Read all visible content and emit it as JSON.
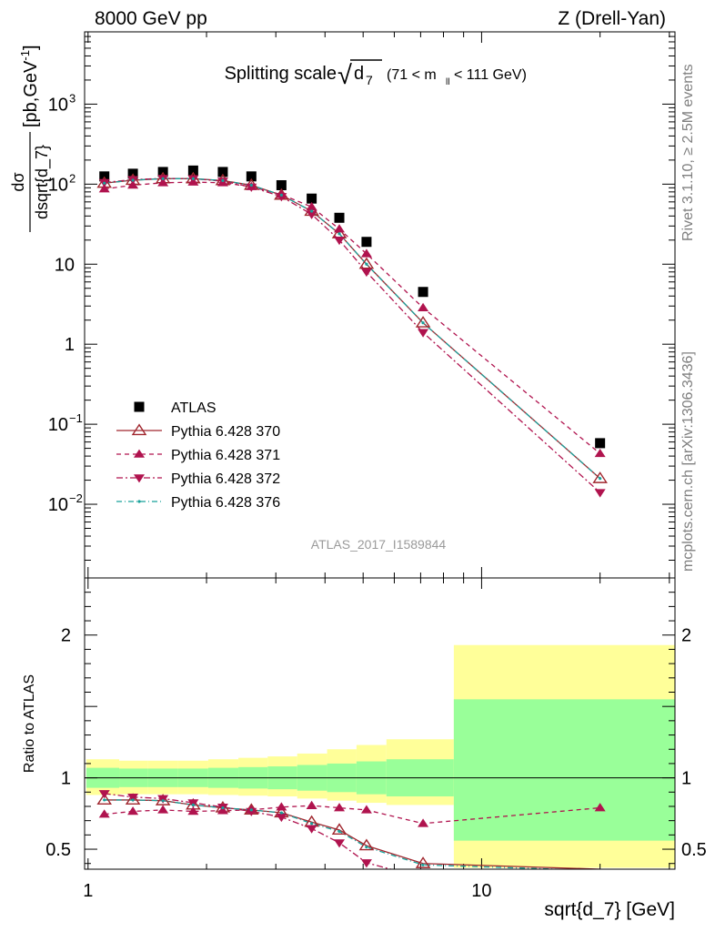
{
  "header": {
    "left": "8000 GeV pp",
    "right": "Z (Drell-Yan)"
  },
  "title": {
    "main": "Splitting scale",
    "sqrt_symbol": "√",
    "var_base": "d",
    "var_sub": "7",
    "cut_open": "(71 < m",
    "cut_sub": "ll",
    "cut_close": " < 111 GeV)"
  },
  "side_labels": {
    "rivet": "Rivet 3.1.10, ≥ 2.5M events",
    "mcplots": "mcplots.cern.ch [arXiv:1306.3436]"
  },
  "watermark": "ATLAS_2017_I1589844",
  "axes": {
    "ylabel_num": "dσ",
    "ylabel_den": "dsqrt{d_7}",
    "ylabel_units_pre": "[pb,GeV",
    "ylabel_units_sup": "-1",
    "ylabel_units_post": "]",
    "ratio_ylabel": "Ratio to ATLAS",
    "xlabel": "sqrt{d_7} [GeV]",
    "x_ticks": [
      {
        "v": 1,
        "t": "1"
      },
      {
        "v": 10,
        "t": "10"
      }
    ],
    "y_ticks": [
      {
        "v": 0.01,
        "b": "10",
        "e": "−2"
      },
      {
        "v": 0.1,
        "b": "10",
        "e": "−1"
      },
      {
        "v": 1,
        "b": "1",
        "e": ""
      },
      {
        "v": 10,
        "b": "10",
        "e": ""
      },
      {
        "v": 100,
        "b": "10",
        "e": "2"
      },
      {
        "v": 1000,
        "b": "10",
        "e": "3"
      }
    ],
    "ratio_ticks": [
      {
        "v": 0.5,
        "t": "0.5"
      },
      {
        "v": 1,
        "t": "1"
      },
      {
        "v": 2,
        "t": "2"
      }
    ]
  },
  "colors": {
    "atlas": "#000000",
    "p370": "#a0262e",
    "p371": "#b0134e",
    "p372": "#b0134e",
    "p376": "#17a19a",
    "band_inner": "#99ff99",
    "band_outer": "#ffff99"
  },
  "chart_data": {
    "type": "scatter",
    "x_scale": "log",
    "y_scale": "log",
    "xlim": [
      0.98,
      31
    ],
    "ylim": [
      0.0012,
      8000
    ],
    "ratio_ylim": [
      0.36,
      2.4
    ],
    "x": [
      1.1,
      1.3,
      1.55,
      1.85,
      2.2,
      2.6,
      3.1,
      3.7,
      4.35,
      5.1,
      7.1,
      20.0
    ],
    "bins": [
      0.99,
      1.2,
      1.42,
      1.69,
      2.02,
      2.41,
      2.86,
      3.4,
      4.05,
      4.81,
      5.73,
      8.5,
      31.0
    ],
    "series": [
      {
        "name": "ATLAS",
        "style": "data",
        "values": [
          125,
          135,
          142,
          148,
          142,
          125,
          97,
          66,
          38,
          19,
          4.5,
          0.058
        ]
      },
      {
        "name": "Pythia 6.428 370",
        "style": "open-tri",
        "values": [
          103,
          112,
          117,
          117,
          111,
          97,
          73,
          46,
          24,
          10,
          1.85,
          0.021
        ]
      },
      {
        "name": "Pythia 6.428 371",
        "style": "up-tri",
        "values": [
          87,
          97,
          104,
          106,
          104,
          93,
          74,
          52,
          27.5,
          13.5,
          2.85,
          0.043
        ]
      },
      {
        "name": "Pythia 6.428 372",
        "style": "down-tri",
        "values": [
          105,
          114,
          118,
          117,
          109,
          92,
          70,
          42,
          20,
          8.0,
          1.4,
          0.014
        ]
      },
      {
        "name": "Pythia 6.428 376",
        "style": "dot",
        "values": [
          103,
          112,
          117,
          117,
          111,
          97,
          73,
          46,
          24,
          10,
          1.85,
          0.021
        ]
      }
    ],
    "ratio": [
      {
        "name": "Pythia 6.428 370",
        "values": [
          0.845,
          0.845,
          0.84,
          0.81,
          0.79,
          0.775,
          0.755,
          0.69,
          0.635,
          0.525,
          0.4,
          0.36
        ]
      },
      {
        "name": "Pythia 6.428 371",
        "values": [
          0.745,
          0.765,
          0.775,
          0.765,
          0.77,
          0.775,
          0.795,
          0.805,
          0.79,
          0.775,
          0.68,
          0.79
        ]
      },
      {
        "name": "Pythia 6.428 372",
        "values": [
          0.89,
          0.865,
          0.855,
          0.825,
          0.795,
          0.765,
          0.725,
          0.645,
          0.545,
          0.405,
          0.3,
          0.24
        ]
      },
      {
        "name": "Pythia 6.428 376",
        "values": [
          0.845,
          0.845,
          0.84,
          0.81,
          0.79,
          0.775,
          0.755,
          0.68,
          0.625,
          0.515,
          0.39,
          0.35
        ]
      }
    ],
    "band_stat_lo": [
      0.93,
      0.935,
      0.935,
      0.935,
      0.93,
      0.925,
      0.92,
      0.91,
      0.9,
      0.885,
      0.87,
      0.56
    ],
    "band_stat_hi": [
      1.07,
      1.065,
      1.065,
      1.065,
      1.07,
      1.075,
      1.08,
      1.09,
      1.1,
      1.115,
      1.13,
      1.55
    ],
    "band_tot_lo": [
      0.88,
      0.885,
      0.885,
      0.885,
      0.88,
      0.875,
      0.87,
      0.855,
      0.84,
      0.825,
      0.81,
      0.37
    ],
    "band_tot_hi": [
      1.13,
      1.12,
      1.12,
      1.12,
      1.13,
      1.14,
      1.15,
      1.17,
      1.2,
      1.23,
      1.27,
      1.93
    ]
  }
}
